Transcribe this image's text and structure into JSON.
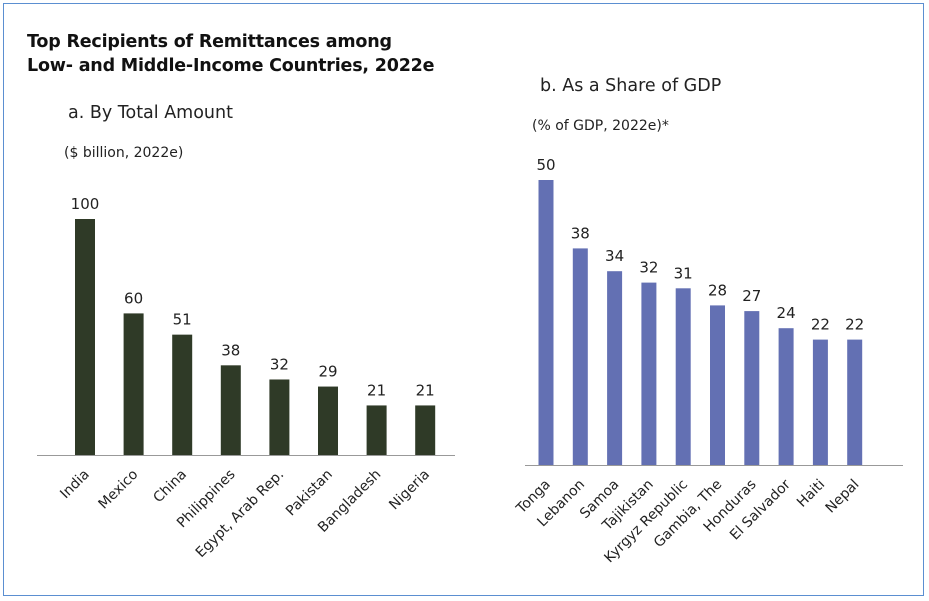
{
  "title_line1": "Top Recipients of Remittances among",
  "title_line2": "Low- and Middle-Income Countries, 2022e",
  "chart_data": [
    {
      "type": "bar",
      "title": "a. By Total Amount",
      "unit_label": "($ billion, 2022e)",
      "categories": [
        "India",
        "Mexico",
        "China",
        "Philippines",
        "Egypt, Arab Rep.",
        "Pakistan",
        "Bangladesh",
        "Nigeria"
      ],
      "values": [
        100,
        60,
        51,
        38,
        32,
        29,
        21,
        21
      ],
      "ylim": [
        0,
        100
      ],
      "grid": false,
      "color": "#2f3a27"
    },
    {
      "type": "bar",
      "title": "b. As a Share of GDP",
      "unit_label": "(% of GDP, 2022e)*",
      "categories": [
        "Tonga",
        "Lebanon",
        "Samoa",
        "Tajikistan",
        "Kyrgyz Republic",
        "Gambia, The",
        "Honduras",
        "El Salvador",
        "Haiti",
        "Nepal"
      ],
      "values": [
        50,
        38,
        34,
        32,
        31,
        28,
        27,
        24,
        22,
        22
      ],
      "ylim": [
        0,
        50
      ],
      "grid": false,
      "color": "#6370b3"
    }
  ]
}
